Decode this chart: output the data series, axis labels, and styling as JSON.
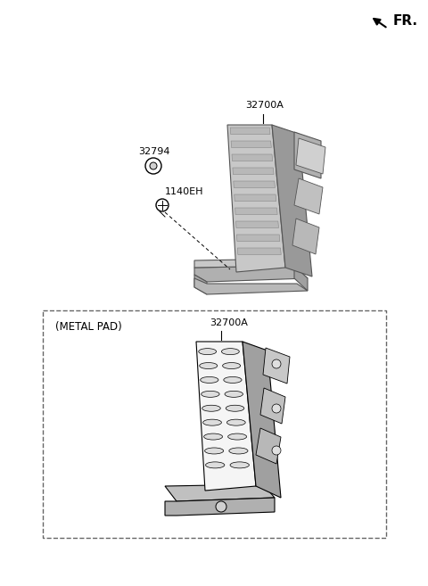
{
  "bg_color": "#ffffff",
  "fr_label": "FR.",
  "top_label": "32700A",
  "part_32794": "32794",
  "part_1140EH": "1140EH",
  "metal_pad_label": "(METAL PAD)",
  "bottom_label": "32700A",
  "line_color": "#555555",
  "dark_gray": "#888888",
  "mid_gray": "#aaaaaa",
  "light_gray": "#cccccc",
  "very_light_gray": "#e0e0e0",
  "black": "#000000",
  "white": "#ffffff"
}
